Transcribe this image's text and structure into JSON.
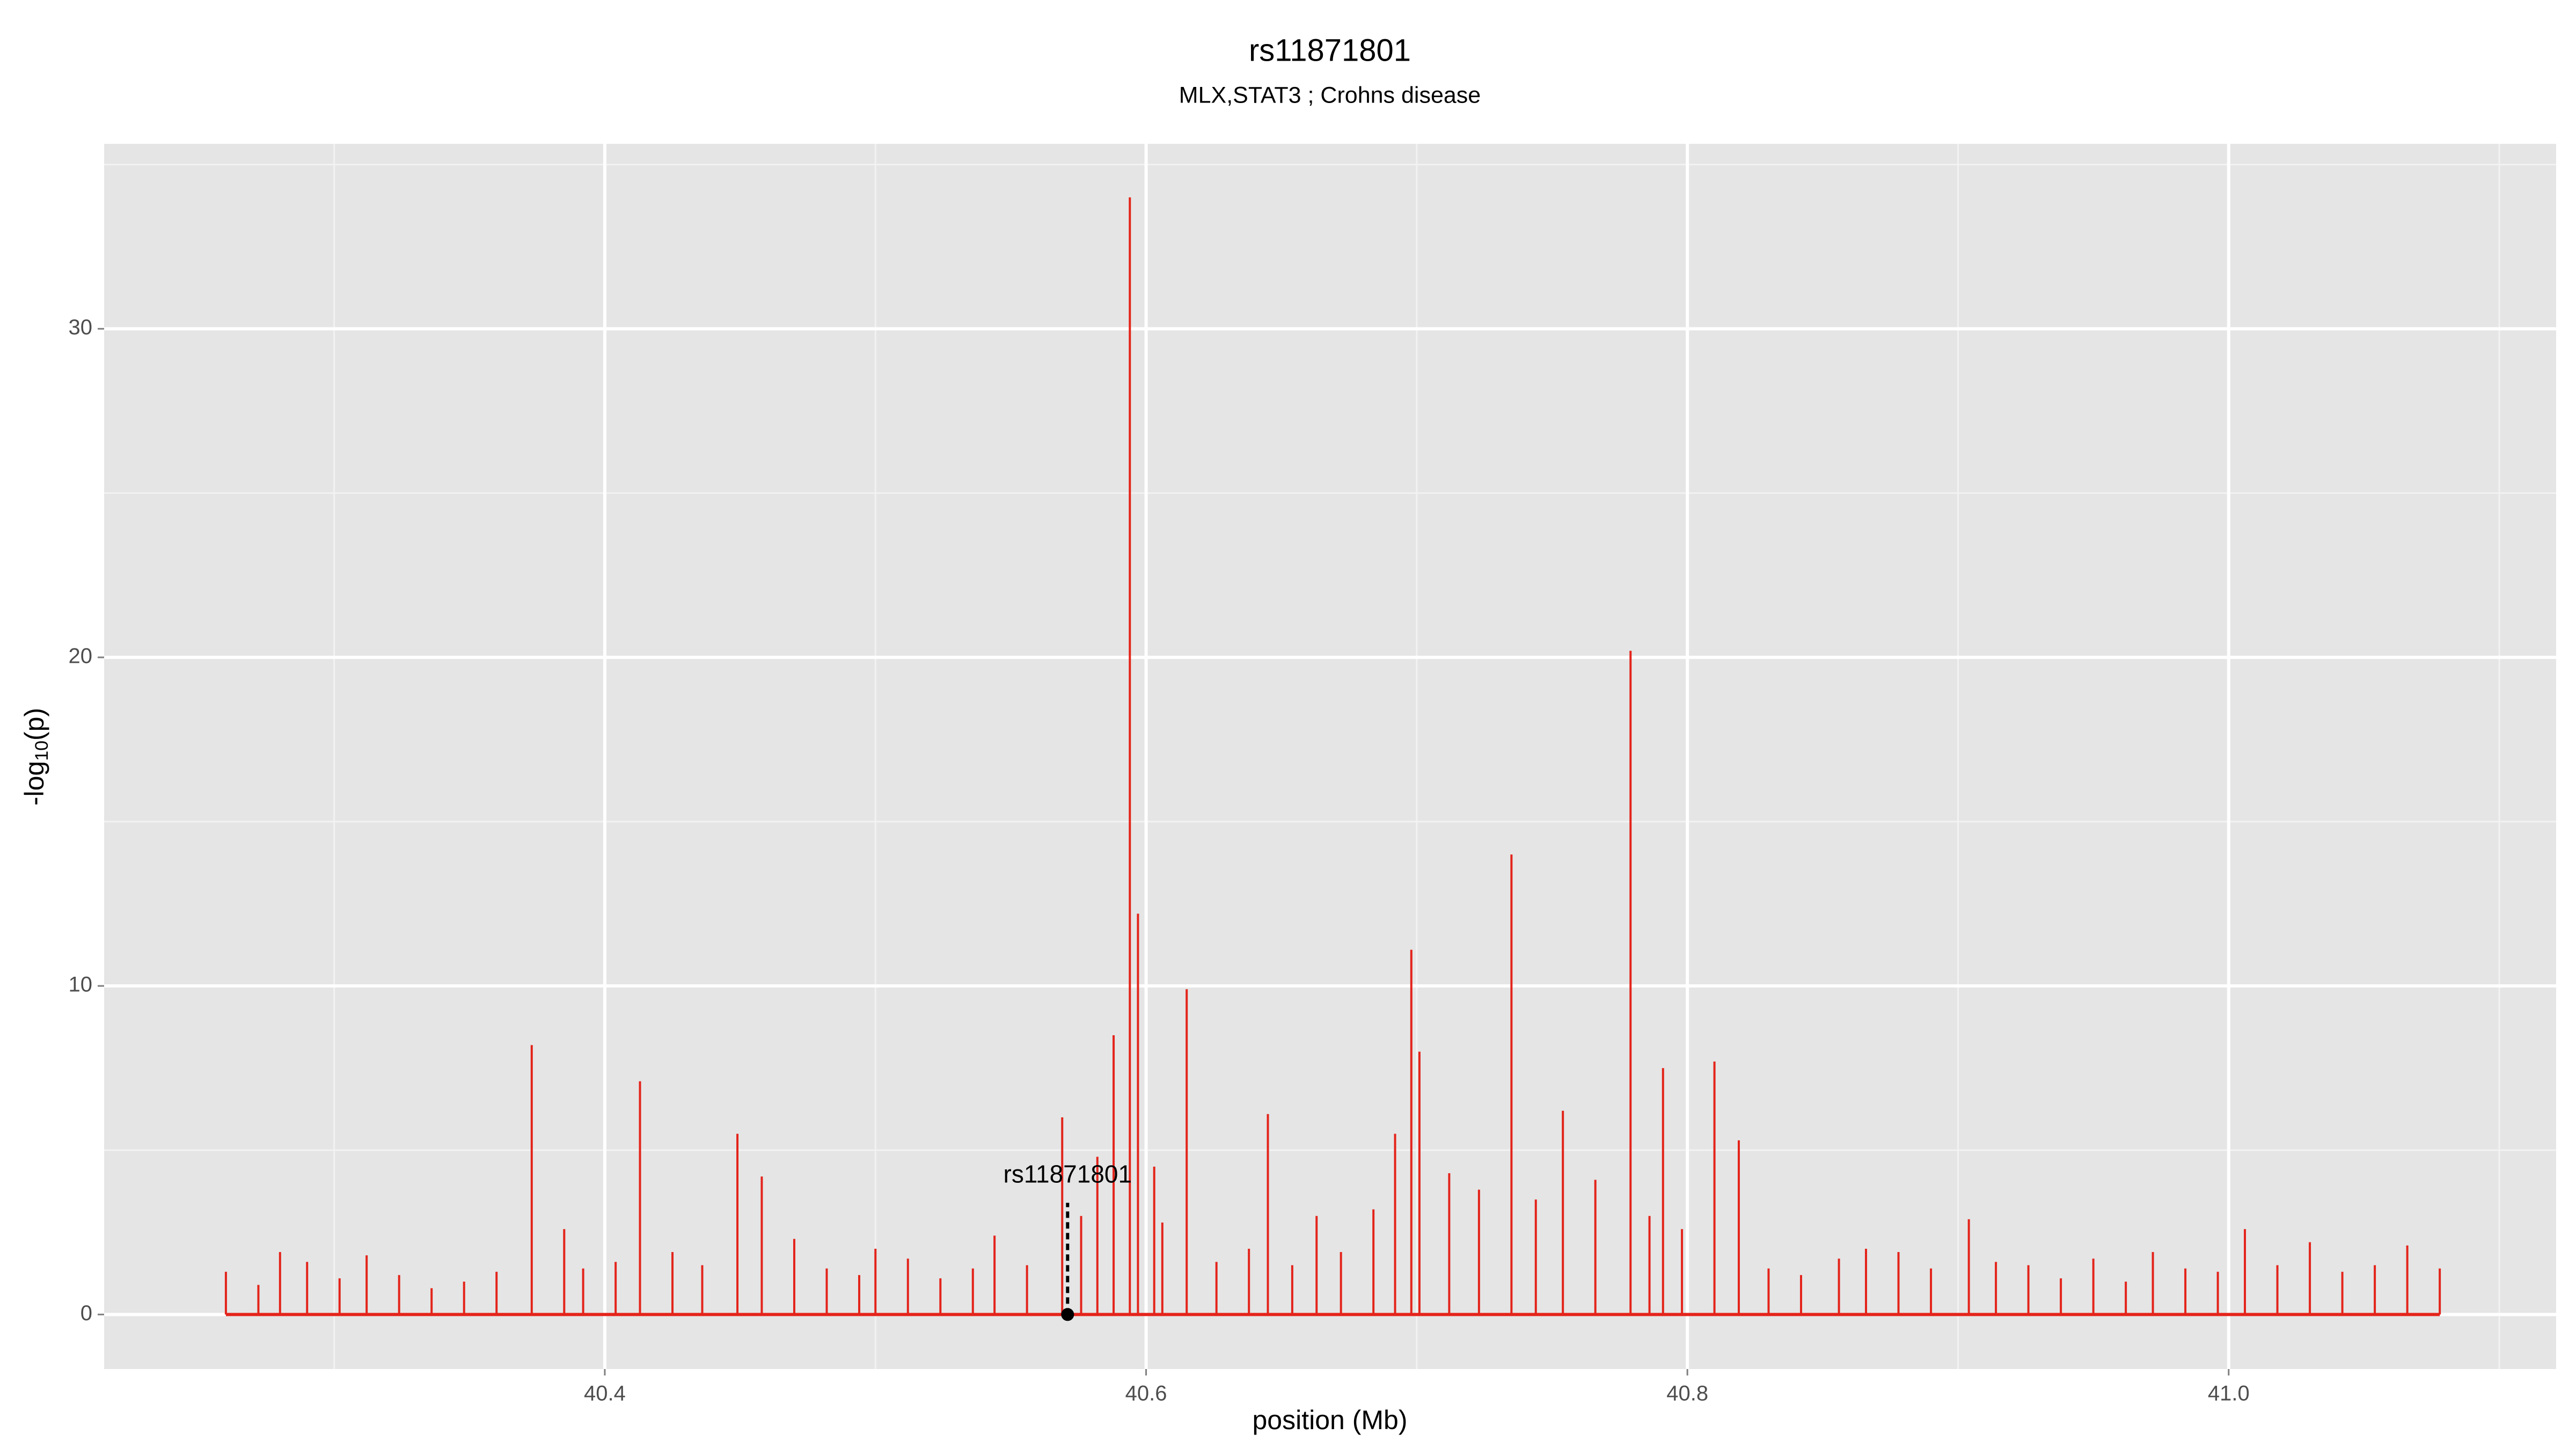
{
  "chart_data": {
    "type": "spike",
    "title": "rs11871801",
    "subtitle": "MLX,STAT3 ; Crohns disease",
    "x_label": "position (Mb)",
    "y_label": {
      "prefix": "-log",
      "sub": "10",
      "suffix": "(p)"
    },
    "color": "#e3241b",
    "x": [
      40.26,
      40.272,
      40.28,
      40.29,
      40.302,
      40.312,
      40.324,
      40.336,
      40.348,
      40.36,
      40.373,
      40.385,
      40.392,
      40.404,
      40.413,
      40.425,
      40.436,
      40.449,
      40.458,
      40.47,
      40.482,
      40.494,
      40.5,
      40.512,
      40.524,
      40.536,
      40.544,
      40.556,
      40.569,
      40.576,
      40.582,
      40.588,
      40.594,
      40.597,
      40.603,
      40.606,
      40.615,
      40.626,
      40.638,
      40.645,
      40.654,
      40.663,
      40.672,
      40.684,
      40.692,
      40.698,
      40.701,
      40.712,
      40.723,
      40.735,
      40.744,
      40.754,
      40.766,
      40.779,
      40.786,
      40.791,
      40.798,
      40.81,
      40.819,
      40.83,
      40.842,
      40.856,
      40.866,
      40.878,
      40.89,
      40.904,
      40.914,
      40.926,
      40.938,
      40.95,
      40.962,
      40.972,
      40.984,
      40.996,
      41.006,
      41.018,
      41.03,
      41.042,
      41.054,
      41.066,
      41.078
    ],
    "values": [
      1.3,
      0.9,
      1.9,
      1.6,
      1.1,
      1.8,
      1.2,
      0.8,
      1.0,
      1.3,
      8.2,
      2.6,
      1.4,
      1.6,
      7.1,
      1.9,
      1.5,
      5.5,
      4.2,
      2.3,
      1.4,
      1.2,
      2.0,
      1.7,
      1.1,
      1.4,
      2.4,
      1.5,
      6.0,
      3.0,
      4.8,
      8.5,
      34,
      12.2,
      4.5,
      2.8,
      9.9,
      1.6,
      2.0,
      6.1,
      1.5,
      3.0,
      1.9,
      3.2,
      5.5,
      11.1,
      8.0,
      4.3,
      3.8,
      14.0,
      3.5,
      6.2,
      4.1,
      20.2,
      3.0,
      7.5,
      2.6,
      7.7,
      5.3,
      1.4,
      1.2,
      1.7,
      2.0,
      1.9,
      1.4,
      2.9,
      1.6,
      1.5,
      1.1,
      1.7,
      1.0,
      1.9,
      1.4,
      1.3,
      2.6,
      1.5,
      2.2,
      1.3,
      1.5,
      2.1,
      1.4
    ],
    "annotation": {
      "text": "rs11871801",
      "x": 40.571,
      "y": 3.4
    },
    "xlim": [
      40.215,
      41.121
    ],
    "ylim": [
      -1.66,
      35.63
    ],
    "xticks": [
      40.4,
      40.6,
      40.8,
      {
        "value": 41,
        "label": "41.0"
      }
    ],
    "yticks": [
      0,
      10,
      20,
      30
    ],
    "x_minor_ticks": [
      40.3,
      40.5,
      40.7,
      40.9,
      41.1
    ],
    "y_minor_ticks": [
      5,
      15,
      25,
      35
    ],
    "grid": true
  }
}
